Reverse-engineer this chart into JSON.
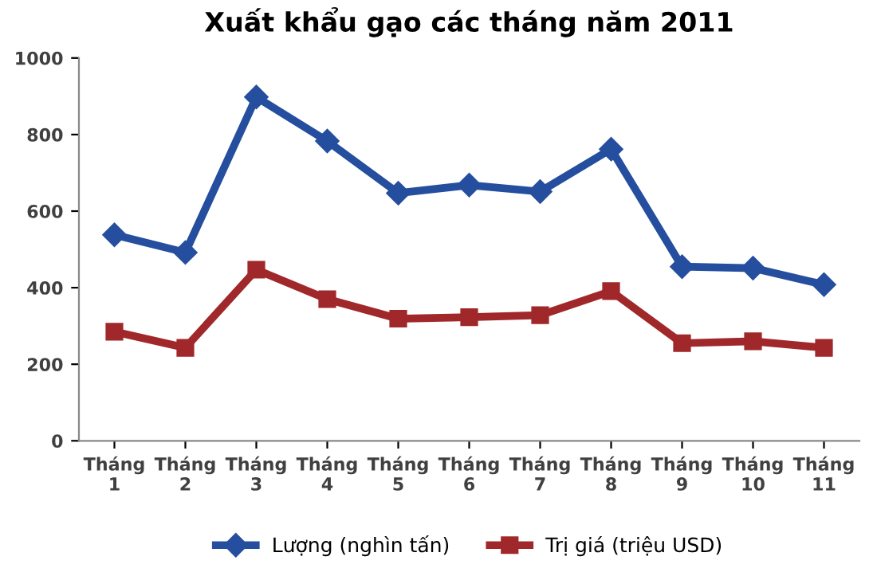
{
  "chart_data": {
    "type": "line",
    "title": "Xuất khẩu gạo các tháng năm 2011",
    "categories": [
      "Tháng\n1",
      "Tháng\n2",
      "Tháng\n3",
      "Tháng\n4",
      "Tháng\n5",
      "Tháng\n6",
      "Tháng\n7",
      "Tháng\n8",
      "Tháng\n9",
      "Tháng\n10",
      "Tháng\n11"
    ],
    "series": [
      {
        "name": "Lượng (nghìn tấn)",
        "color": "#254f9e",
        "marker": "diamond",
        "values": [
          538,
          492,
          898,
          783,
          647,
          668,
          651,
          762,
          455,
          451,
          408
        ]
      },
      {
        "name": "Trị giá (triệu USD)",
        "color": "#a0282a",
        "marker": "square",
        "values": [
          285,
          243,
          447,
          370,
          319,
          323,
          328,
          391,
          255,
          260,
          243
        ]
      }
    ],
    "ylim": [
      0,
      1000
    ],
    "yticks": [
      0,
      200,
      400,
      600,
      800,
      1000
    ],
    "grid": false,
    "legend": "bottom",
    "line_style": "solid"
  }
}
